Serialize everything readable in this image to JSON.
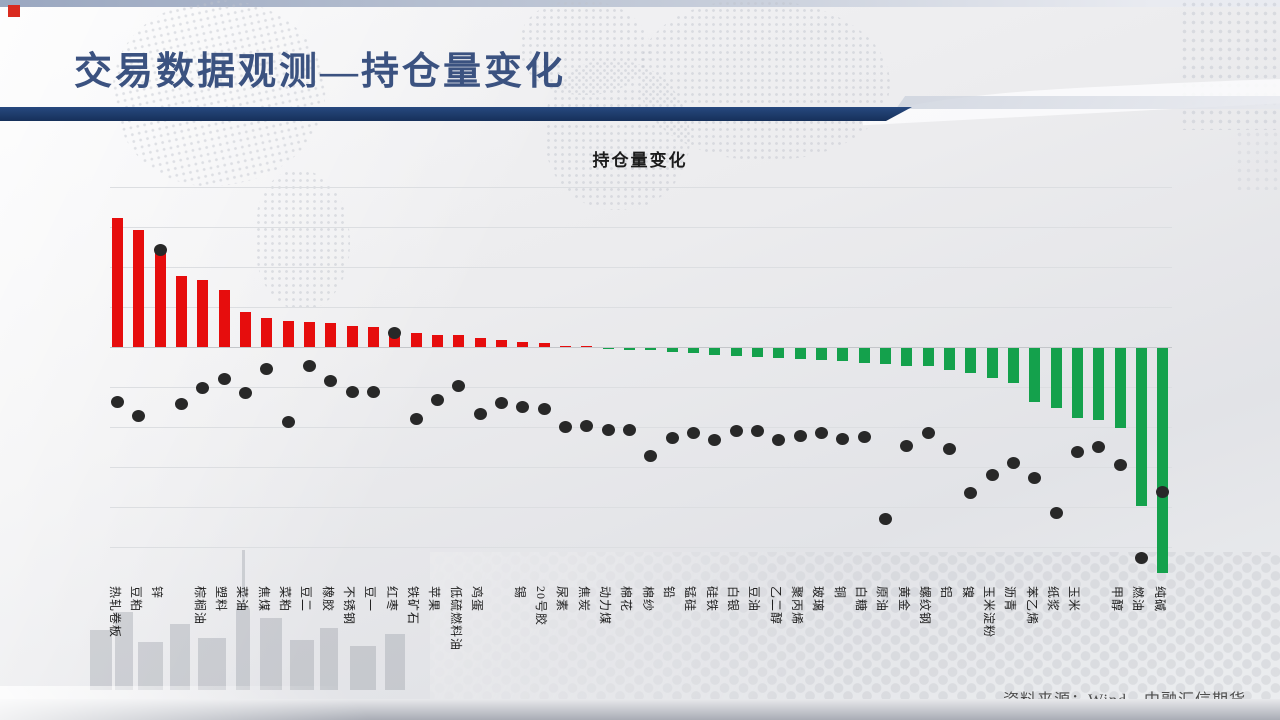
{
  "page": {
    "title": "交易数据观测—持仓量变化"
  },
  "chart": {
    "title": "持仓量变化"
  },
  "footer": {
    "source": "资料来源：Wind，中融汇信期货"
  },
  "colors": {
    "bar_up": "#e60d0d",
    "bar_down": "#14a14c",
    "dot": "#282828",
    "title_blue": "#3b5280",
    "divider_navy": "#1b3a6b"
  },
  "chart_data": {
    "type": "bar+scatter",
    "title": "持仓量变化",
    "legend": "none",
    "axes_note": "no numeric y-axis labels visible; values estimated in pixels from unlabeled gridlines (gridline spacing = 40px, zero line at baseline)",
    "value_unit": "px_offset_from_zero_line",
    "categories": [
      "热轧卷板",
      "豆粕",
      "锌",
      "",
      "棕榈油",
      "塑料",
      "菜油",
      "焦煤",
      "菜粕",
      "豆二",
      "橡胶",
      "不锈钢",
      "豆一",
      "红枣",
      "铁矿石",
      "苹果",
      "低硫燃料油",
      "鸡蛋",
      "",
      "锡",
      "20号胶",
      "尿素",
      "焦炭",
      "动力煤",
      "棉花",
      "棉纱",
      "铅",
      "锰硅",
      "硅铁",
      "白银",
      "豆油",
      "乙二醇",
      "聚丙烯",
      "玻璃",
      "铜",
      "白糖",
      "原油",
      "黄金",
      "螺纹钢",
      "铝",
      "镍",
      "玉米淀粉",
      "沥青",
      "苯乙烯",
      "纸浆",
      "玉米",
      "",
      "甲醇",
      "燃油",
      "纯碱"
    ],
    "series": [
      {
        "name": "持仓量变化-柱",
        "type": "bar",
        "values": [
          129,
          117,
          99,
          71,
          67,
          57,
          35,
          29,
          26,
          25,
          24,
          21,
          20,
          15,
          14,
          12,
          12,
          9,
          7,
          5,
          4,
          1,
          1,
          -1,
          -2,
          -2,
          -4,
          -5,
          -7,
          -8,
          -9,
          -10,
          -11,
          -12,
          -13,
          -15,
          -16,
          -18,
          -18,
          -22,
          -25,
          -30,
          -35,
          -54,
          -60,
          -70,
          -72,
          -80,
          -158,
          -225
        ]
      },
      {
        "name": "持仓量变化-散点",
        "type": "scatter",
        "values": [
          -55,
          -69,
          97,
          -57,
          -41,
          -32,
          -46,
          -22,
          -75,
          -19,
          -34,
          -45,
          -45,
          14,
          -72,
          -53,
          -39,
          -67,
          -56,
          -60,
          -62,
          -80,
          -79,
          -83,
          -83,
          -109,
          -91,
          -86,
          -93,
          -84,
          -84,
          -93,
          -89,
          -86,
          -92,
          -90,
          -172,
          -99,
          -86,
          -102,
          -146,
          -128,
          -116,
          -131,
          -166,
          -105,
          -100,
          -118,
          -211,
          -145
        ]
      }
    ]
  }
}
